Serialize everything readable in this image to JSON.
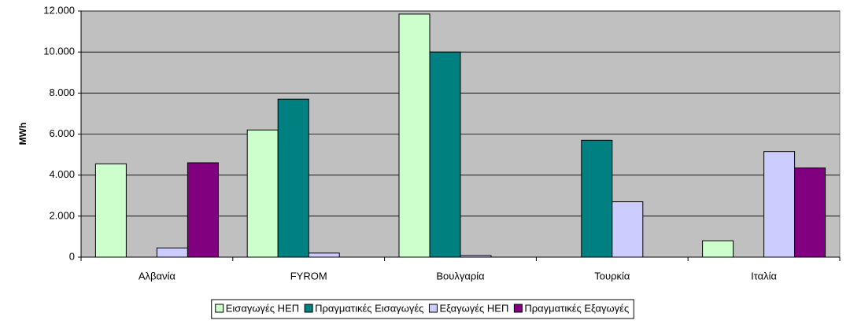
{
  "chart_data": {
    "type": "bar",
    "y_label": "MWh",
    "categories": [
      "Αλβανία",
      "FYROM",
      "Βουλγαρία",
      "Τουρκία",
      "Ιταλία"
    ],
    "series": [
      {
        "name": "Εισαγωγές ΗΕΠ",
        "color": "#ccffcc",
        "values": [
          4550,
          6200,
          11850,
          0,
          800
        ]
      },
      {
        "name": "Πραγματικές Εισαγωγές",
        "color": "#008080",
        "values": [
          0,
          7700,
          10000,
          5700,
          0
        ]
      },
      {
        "name": "Εξαγωγές ΗΕΠ",
        "color": "#ccccff",
        "values": [
          450,
          200,
          80,
          2700,
          5150
        ]
      },
      {
        "name": "Πραγματικές Εξαγωγές",
        "color": "#800080",
        "values": [
          4600,
          0,
          0,
          0,
          4350
        ]
      }
    ],
    "ylim": [
      0,
      12000
    ],
    "yticks": [
      0,
      {
        "value": 2000,
        "label": "2.000"
      },
      {
        "value": 4000,
        "label": "4.000"
      },
      {
        "value": 6000,
        "label": "6.000"
      },
      {
        "value": 8000,
        "label": "8.000"
      },
      {
        "value": 10000,
        "label": "10.000"
      },
      {
        "value": 12000,
        "label": "12.000"
      }
    ],
    "grid": true,
    "legend": "bottom",
    "plot_background": "#c0c0c0"
  }
}
